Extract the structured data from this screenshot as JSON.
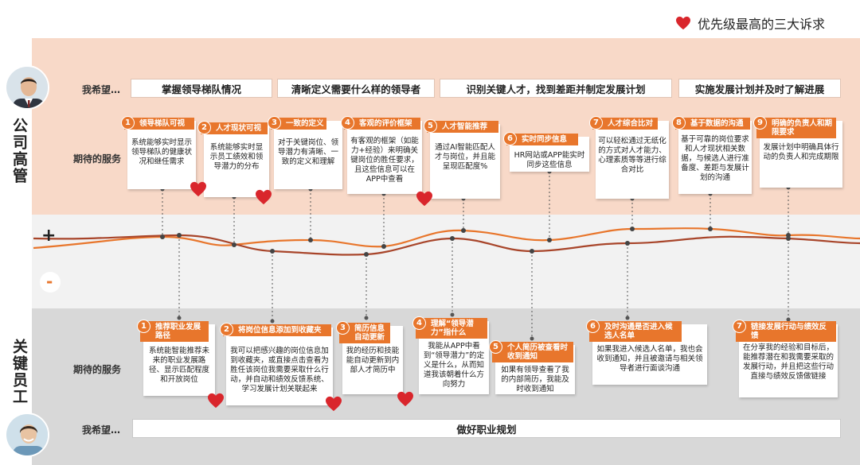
{
  "legend": {
    "label": "优先级最高的三大诉求",
    "color": "#d9262c"
  },
  "top": {
    "side_label": "公司高管",
    "hope_label": "我希望…",
    "service_label": "期待的服务",
    "hopes": [
      "掌握领导梯队情况",
      "清晰定义需要什么样的领导者",
      "识别关键人才，找到差距并制定发展计划",
      "实施发展计划并及时了解进展"
    ],
    "cards": [
      {
        "num": "1",
        "title": "领导梯队可视",
        "body": "系统能够实时显示领导梯队的健康状况和继任需求"
      },
      {
        "num": "2",
        "title": "人才现状可视",
        "body": "系统能够实时显示员工绩效和领导潜力的分布"
      },
      {
        "num": "3",
        "title": "一致的定义",
        "body": "对于关键岗位、领导潜力有清晰、一致的定义和理解"
      },
      {
        "num": "4",
        "title": "客观的评价框架",
        "body": "有客观的框架（如能力+经验）来明确关键岗位的胜任要求，且这些信息可以在APP中查看"
      },
      {
        "num": "5",
        "title": "人才智能推荐",
        "body": "通过AI智能匹配人才与岗位，并且能呈现匹配度%"
      },
      {
        "num": "6",
        "title": "实时同步信息",
        "body": "HR网站或APP能实时同步这些信息"
      },
      {
        "num": "7",
        "title": "人才综合比对",
        "body": "可以轻松通过无纸化的方式对人才能力、心理素质等等进行综合对比"
      },
      {
        "num": "8",
        "title": "基于数据的沟通",
        "body": "基于可靠的岗位要求和人才现状相关数据，与候选人进行准备度、差距与发展计划的沟通"
      },
      {
        "num": "9",
        "title": "明确的负责人和期限要求",
        "body": "发展计划中明确具体行动的负责人和完成期限"
      }
    ]
  },
  "mid": {
    "plus": "+",
    "minus": "-"
  },
  "bottom": {
    "side_label": "关键员工",
    "hope_label": "我希望…",
    "service_label": "期待的服务",
    "hope": "做好职业规划",
    "cards": [
      {
        "num": "1",
        "title": "推荐职业发展路径",
        "body": "系统能智能推荐未来的职业发展路径、显示匹配程度和开放岗位"
      },
      {
        "num": "2",
        "title": "将岗位信息添加到收藏夹",
        "body": "我可以把感兴趣的岗位信息加到收藏夹，或直接点击查看为胜任该岗位我需要采取什么行动，并自动和绩效反馈系统、学习发展计划关联起来"
      },
      {
        "num": "3",
        "title": "简历信息自动更新",
        "body": "我的经历和技能能自动更新到内部人才简历中"
      },
      {
        "num": "4",
        "title": "理解“领导潜力”指什么",
        "body": "我能从APP中看到“领导潜力”的定义是什么，从而知道我该朝着什么方向努力"
      },
      {
        "num": "5",
        "title": "个人简历被查看时收到通知",
        "body": "如果有领导查看了我的内部简历，我能及时收到通知"
      },
      {
        "num": "6",
        "title": "及时沟通是否进入候选人名单",
        "body": "如果我进入候选人名单，我也会收到通知，并且被邀请与相关领导者进行面谈沟通"
      },
      {
        "num": "7",
        "title": "链接发展行动与绩效反馈",
        "body": "在分享我的经验和目标后，能推荐潜在和我需要采取的发展行动，并且把这些行动直接与绩效反馈做链接"
      }
    ]
  }
}
